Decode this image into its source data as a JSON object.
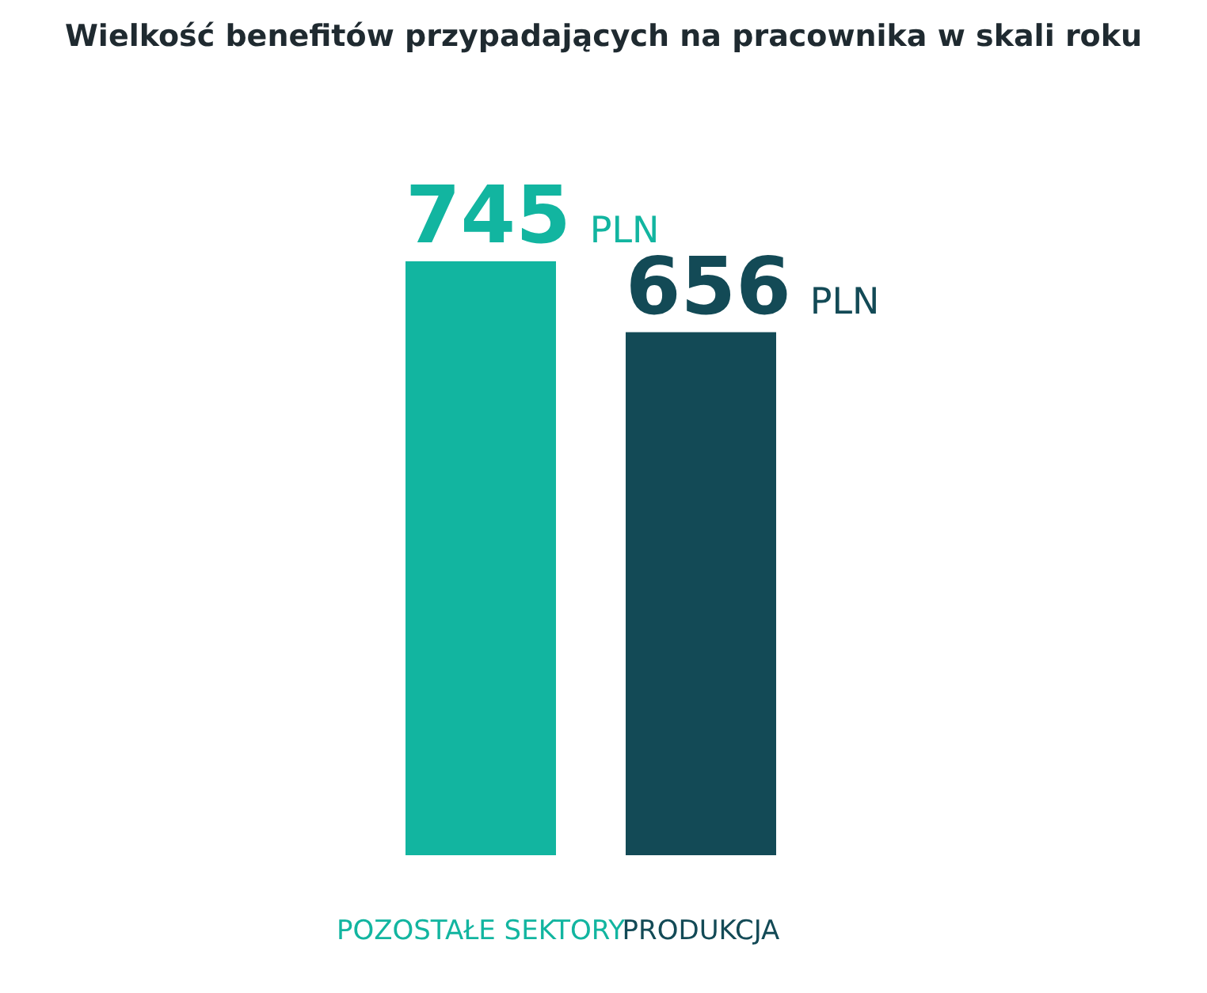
{
  "chart_data": {
    "type": "bar",
    "title": "Wielkość benefitów przypadających na pracownika w skali roku",
    "categories": [
      "POZOSTAŁE SEKTORY",
      "PRODUKCJA"
    ],
    "values": [
      745,
      656
    ],
    "colors": [
      "#12b5a0",
      "#134a56"
    ],
    "value_labels": [
      "745 PLN",
      "656 PLN"
    ]
  }
}
